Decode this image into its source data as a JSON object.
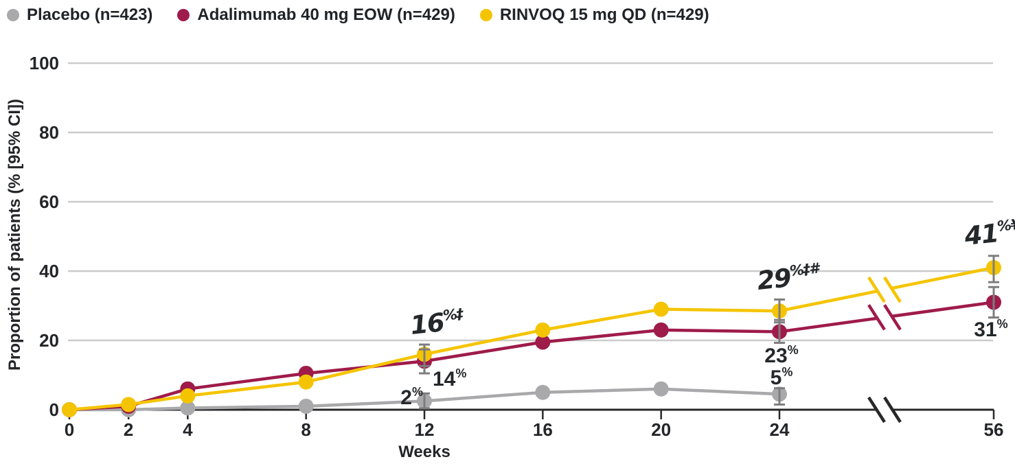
{
  "legend": {
    "items": [
      {
        "label": "Placebo (n=423)",
        "color": "#A9A9AB"
      },
      {
        "label": "Adalimumab 40 mg EOW (n=429)",
        "color": "#9E1B4A"
      },
      {
        "label": "RINVOQ 15 mg QD (n=429)",
        "color": "#F5C400"
      }
    ]
  },
  "colors": {
    "grid": "#CBCBCB",
    "axis": "#28282A",
    "error_bar": "#7D7D7F",
    "text": "#232528",
    "background": "#FFFFFF"
  },
  "chart_data": {
    "type": "line",
    "title": "",
    "xlabel": "Weeks",
    "ylabel": "Proportion of patients (% [95% CI])",
    "x_ticks": [
      0,
      2,
      4,
      8,
      12,
      16,
      20,
      24,
      56
    ],
    "y_ticks": [
      0,
      20,
      40,
      60,
      80,
      100
    ],
    "ylim": [
      0,
      100
    ],
    "grid": "horizontal",
    "legend_position": "top-left",
    "axis_break_between": [
      24,
      56
    ],
    "series": [
      {
        "name": "Placebo (n=423)",
        "color": "#A9A9AB",
        "weeks": [
          0,
          2,
          4,
          8,
          12,
          16,
          20,
          24
        ],
        "values": [
          0,
          0,
          0.5,
          1,
          2.5,
          5,
          6,
          4.5
        ]
      },
      {
        "name": "Adalimumab 40 mg EOW (n=429)",
        "color": "#9E1B4A",
        "weeks": [
          0,
          2,
          4,
          8,
          12,
          16,
          20,
          24,
          56
        ],
        "values": [
          0,
          1,
          6,
          10.5,
          14,
          19.5,
          23,
          22.5,
          31
        ]
      },
      {
        "name": "RINVOQ 15 mg QD (n=429)",
        "color": "#F5C400",
        "weeks": [
          0,
          2,
          4,
          8,
          12,
          16,
          20,
          24,
          56
        ],
        "values": [
          0,
          1.5,
          4,
          8,
          16,
          23,
          29,
          28.5,
          41
        ]
      }
    ],
    "error_bars": [
      {
        "id": "rinvoq-wk12",
        "series": "RINVOQ 15 mg QD",
        "week": 12,
        "lo": 12.6,
        "hi": 18.8
      },
      {
        "id": "ada-wk12",
        "series": "Adalimumab 40 mg EOW",
        "week": 12,
        "lo": 10.5,
        "hi": 17.4
      },
      {
        "id": "placebo-wk12",
        "series": "Placebo",
        "week": 12,
        "lo": 0.4,
        "hi": 4.7
      },
      {
        "id": "rinvoq-wk24",
        "series": "RINVOQ 15 mg QD",
        "week": 24,
        "lo": 25.2,
        "hi": 31.8
      },
      {
        "id": "ada-wk24",
        "series": "Adalimumab 40 mg EOW",
        "week": 24,
        "lo": 19.3,
        "hi": 25.9
      },
      {
        "id": "placebo-wk24",
        "series": "Placebo",
        "week": 24,
        "lo": 1.5,
        "hi": 6.2
      },
      {
        "id": "rinvoq-wk56",
        "series": "RINVOQ 15 mg QD",
        "week": 56,
        "lo": 36.8,
        "hi": 44.4
      },
      {
        "id": "ada-wk56",
        "series": "Adalimumab 40 mg EOW",
        "week": 56,
        "lo": 26.6,
        "hi": 35.4
      }
    ],
    "annotations": [
      {
        "id": "placebo-wk12",
        "value": "2",
        "sup": "%",
        "style": "plain",
        "x": 616,
        "y": 589,
        "anchor": "end"
      },
      {
        "id": "ada-wk12",
        "value": "14",
        "sup": "%",
        "style": "plain",
        "x": 630,
        "y": 562,
        "anchor": "start"
      },
      {
        "id": "rinvoq-wk12",
        "value": "16",
        "sup": "%‡",
        "style": "brush",
        "x": 599,
        "y": 487,
        "anchor": "start"
      },
      {
        "id": "ada-wk24",
        "value": "23",
        "sup": "%",
        "style": "plain",
        "x": 1138,
        "y": 528,
        "anchor": "middle"
      },
      {
        "id": "placebo-wk24",
        "value": "5",
        "sup": "%",
        "style": "plain",
        "x": 1138,
        "y": 560,
        "anchor": "middle"
      },
      {
        "id": "rinvoq-wk24",
        "value": "29",
        "sup": "%‡#",
        "style": "brush",
        "x": 1104,
        "y": 422,
        "anchor": "start"
      },
      {
        "id": "ada-wk56",
        "value": "31",
        "sup": "%",
        "style": "plain",
        "x": 1443,
        "y": 490,
        "anchor": "middle"
      },
      {
        "id": "rinvoq-wk56",
        "value": "41",
        "sup": "%¥",
        "style": "brush",
        "x": 1406,
        "y": 357,
        "anchor": "start"
      }
    ]
  }
}
